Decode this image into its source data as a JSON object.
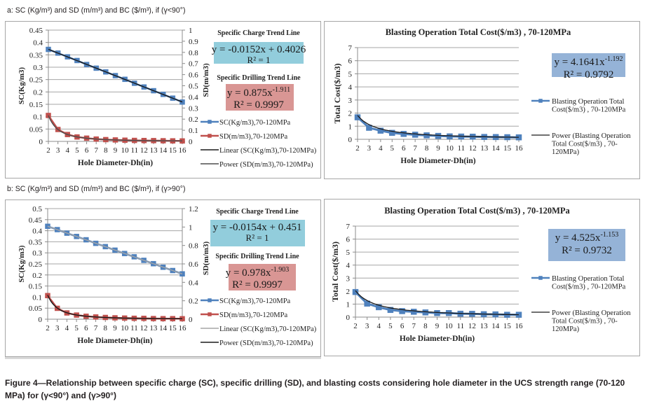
{
  "sections": {
    "a_title": "a: SC (Kg/m³) and SD (m/m³) and BC ($/m³), if (γ<90°)",
    "b_title": "b: SC (Kg/m³) and SD (m/m³) and BC ($/m³), if (γ>90°)"
  },
  "caption": {
    "line1": "Figure 4—Relationship between specific charge (SC), specific drilling (SD), and blasting costs considering hole diameter in the UCS strength range (70-120",
    "line2": "MPa) for (γ<90°) and (γ>90°)"
  },
  "colors": {
    "sc_series": "#4f81bd",
    "sd_series": "#c0504d",
    "sc_box": "#92cddc",
    "sd_box": "#d99694",
    "cost_box": "#95b3d7",
    "grid": "#a6a6a6",
    "trend_dark": "#1a1a1a",
    "trend_gray_a": "#4d4d4d",
    "trend_gray_b": "#a6a6a6"
  },
  "chart_data": [
    {
      "id": "a-left",
      "type": "line",
      "title": "",
      "xlabel": "Hole Diameter-Dh(in)",
      "ylabel": "SC(Kg/m3)",
      "y2label": "SD(m/m3)",
      "x": [
        2,
        3,
        4,
        5,
        6,
        7,
        8,
        9,
        10,
        11,
        12,
        13,
        14,
        15,
        16
      ],
      "ylim": [
        0,
        0.45
      ],
      "yticks": [
        "0",
        "0.05",
        "0.1",
        "0.15",
        "0.2",
        "0.25",
        "0.3",
        "0.35",
        "0.4",
        "0.45"
      ],
      "y2lim": [
        0,
        1
      ],
      "y2ticks": [
        "0",
        "0.1",
        "0.2",
        "0.3",
        "0.4",
        "0.5",
        "0.6",
        "0.7",
        "0.8",
        "0.9",
        "1"
      ],
      "grid": true,
      "series": [
        {
          "name": "SC(Kg/m3),70-120MPa",
          "axis": "left",
          "values": [
            0.372,
            0.357,
            0.342,
            0.327,
            0.311,
            0.296,
            0.281,
            0.266,
            0.251,
            0.235,
            0.22,
            0.205,
            0.19,
            0.175,
            0.159
          ]
        },
        {
          "name": "SD(m/m3),70-120MPa",
          "axis": "right",
          "values": [
            0.233,
            0.107,
            0.062,
            0.04,
            0.029,
            0.021,
            0.016,
            0.013,
            0.011,
            0.009,
            0.008,
            0.007,
            0.006,
            0.005,
            0.004
          ]
        }
      ],
      "trendlines": [
        {
          "name": "Linear (SC(Kg/m3),70-120MPa)",
          "kind": "linear",
          "a": -0.0152,
          "b": 0.4026,
          "axis": "left"
        },
        {
          "name": "Power (SD(m/m3),70-120MPa)",
          "kind": "power",
          "a": 0.875,
          "b": -1.911,
          "axis": "right"
        }
      ],
      "annotations": {
        "sc_heading": "Specific Charge Trend Line",
        "sc_eq": "y = -0.0152x + 0.4026",
        "sc_r2": "R² = 1",
        "sd_heading": "Specific Drilling Trend Line",
        "sd_eq_base": "y = 0.875x",
        "sd_eq_exp": "-1.911",
        "sd_r2": "R² = 0.9997"
      },
      "legend": [
        "SC(Kg/m3),70-120MPa",
        "SD(m/m3),70-120MPa",
        "Linear (SC(Kg/m3),70-120MPa)",
        "Power (SD(m/m3),70-120MPa)"
      ],
      "legend_position": "right"
    },
    {
      "id": "a-right",
      "type": "line",
      "title": "Blasting Operation Total Cost($/m3) , 70-120MPa",
      "xlabel": "Hole Diameter-Dh(in)",
      "ylabel": "Total Cost($/m3)",
      "x": [
        2,
        3,
        4,
        5,
        6,
        7,
        8,
        9,
        10,
        11,
        12,
        13,
        14,
        15,
        16
      ],
      "ylim": [
        0,
        7
      ],
      "yticks": [
        "0",
        "1",
        "2",
        "3",
        "4",
        "5",
        "6",
        "7"
      ],
      "grid": true,
      "series": [
        {
          "name": "Blasting Operation Total Cost($/m3) , 70-120MPa",
          "values": [
            1.68,
            0.88,
            0.66,
            0.49,
            0.41,
            0.35,
            0.3,
            0.26,
            0.22,
            0.21,
            0.2,
            0.18,
            0.17,
            0.16,
            0.15
          ]
        }
      ],
      "trendlines": [
        {
          "name": "Power (Blasting Operation Total Cost($/m3) , 70-120MPa)",
          "kind": "power",
          "a": 4.1641,
          "b": -1.192
        }
      ],
      "annotations": {
        "eq_base": "y = 4.1641x",
        "eq_exp": "-1.192",
        "r2": "R² = 0.9792"
      },
      "legend": [
        "Blasting Operation Total|Cost($/m3) , 70-120MPa",
        "Power (Blasting Operation|Total Cost($/m3) , 70-|120MPa)"
      ],
      "legend_position": "right"
    },
    {
      "id": "b-left",
      "type": "line",
      "title": "",
      "xlabel": "Hole Diameter-Dh(in)",
      "ylabel": "SC(Kg/m3)",
      "y2label": "SD(m/m3)",
      "x": [
        2,
        3,
        4,
        5,
        6,
        7,
        8,
        9,
        10,
        11,
        12,
        13,
        14,
        15,
        16
      ],
      "ylim": [
        0,
        0.5
      ],
      "yticks": [
        "0",
        "0.05",
        "0.1",
        "0.15",
        "0.2",
        "0.25",
        "0.3",
        "0.35",
        "0.4",
        "0.45",
        "0.5"
      ],
      "y2lim": [
        0,
        1.2
      ],
      "y2ticks": [
        "0",
        "0.2",
        "0.4",
        "0.6",
        "0.8",
        "1",
        "1.2"
      ],
      "grid": true,
      "series": [
        {
          "name": "SC(Kg/m3),70-120MPa",
          "axis": "left",
          "values": [
            0.42,
            0.405,
            0.389,
            0.374,
            0.359,
            0.343,
            0.328,
            0.312,
            0.297,
            0.282,
            0.266,
            0.251,
            0.235,
            0.22,
            0.205
          ]
        },
        {
          "name": "SD(m/m3),70-120MPa",
          "axis": "right",
          "values": [
            0.256,
            0.118,
            0.068,
            0.045,
            0.032,
            0.024,
            0.019,
            0.015,
            0.012,
            0.01,
            0.009,
            0.007,
            0.006,
            0.006,
            0.005
          ]
        }
      ],
      "trendlines": [
        {
          "name": "Linear (SC(Kg/m3),70-120MPa)",
          "kind": "linear",
          "a": -0.0154,
          "b": 0.451,
          "axis": "left"
        },
        {
          "name": "Power (SD(m/m3),70-120MPa)",
          "kind": "power",
          "a": 0.978,
          "b": -1.903,
          "axis": "right"
        }
      ],
      "annotations": {
        "sc_heading": "Specific Charge Trend Line",
        "sc_eq": "y = -0.0154x + 0.451",
        "sc_r2": "R² = 1",
        "sd_heading": "Specific Drilling Trend Line",
        "sd_eq_base": "y = 0.978x",
        "sd_eq_exp": "-1.903",
        "sd_r2": "R² = 0.9997"
      },
      "legend": [
        "SC(Kg/m3),70-120MPa",
        "SD(m/m3),70-120MPa",
        "Linear (SC(Kg/m3),70-120MPa)",
        "Power (SD(m/m3),70-120MPa)"
      ],
      "legend_position": "right"
    },
    {
      "id": "b-right",
      "type": "line",
      "title": "Blasting Operation Total Cost($/m3) , 70-120MPa",
      "xlabel": "Hole Diameter-Dh(in)",
      "ylabel": "Total Cost($/m3)",
      "x": [
        2,
        3,
        4,
        5,
        6,
        7,
        8,
        9,
        10,
        11,
        12,
        13,
        14,
        15,
        16
      ],
      "ylim": [
        0,
        7
      ],
      "yticks": [
        "0",
        "1",
        "2",
        "3",
        "4",
        "5",
        "6",
        "7"
      ],
      "grid": true,
      "series": [
        {
          "name": "Blasting Operation Total Cost($/m3) , 70-120MPa",
          "values": [
            1.93,
            1.04,
            0.76,
            0.55,
            0.46,
            0.41,
            0.36,
            0.31,
            0.31,
            0.26,
            0.25,
            0.22,
            0.21,
            0.18,
            0.18
          ]
        }
      ],
      "trendlines": [
        {
          "name": "Power (Blasting Operation Total Cost($/m3) , 70-120MPa)",
          "kind": "power",
          "a": 4.525,
          "b": -1.153
        }
      ],
      "annotations": {
        "eq_base": "y = 4.525x",
        "eq_exp": "-1.153",
        "r2": "R² = 0.9732"
      },
      "legend": [
        "Blasting Operation Total|Cost($/m3) , 70-120MPa",
        "Power (Blasting Operation|Total Cost($/m3) , 70-|120MPa)"
      ],
      "legend_position": "right"
    }
  ]
}
